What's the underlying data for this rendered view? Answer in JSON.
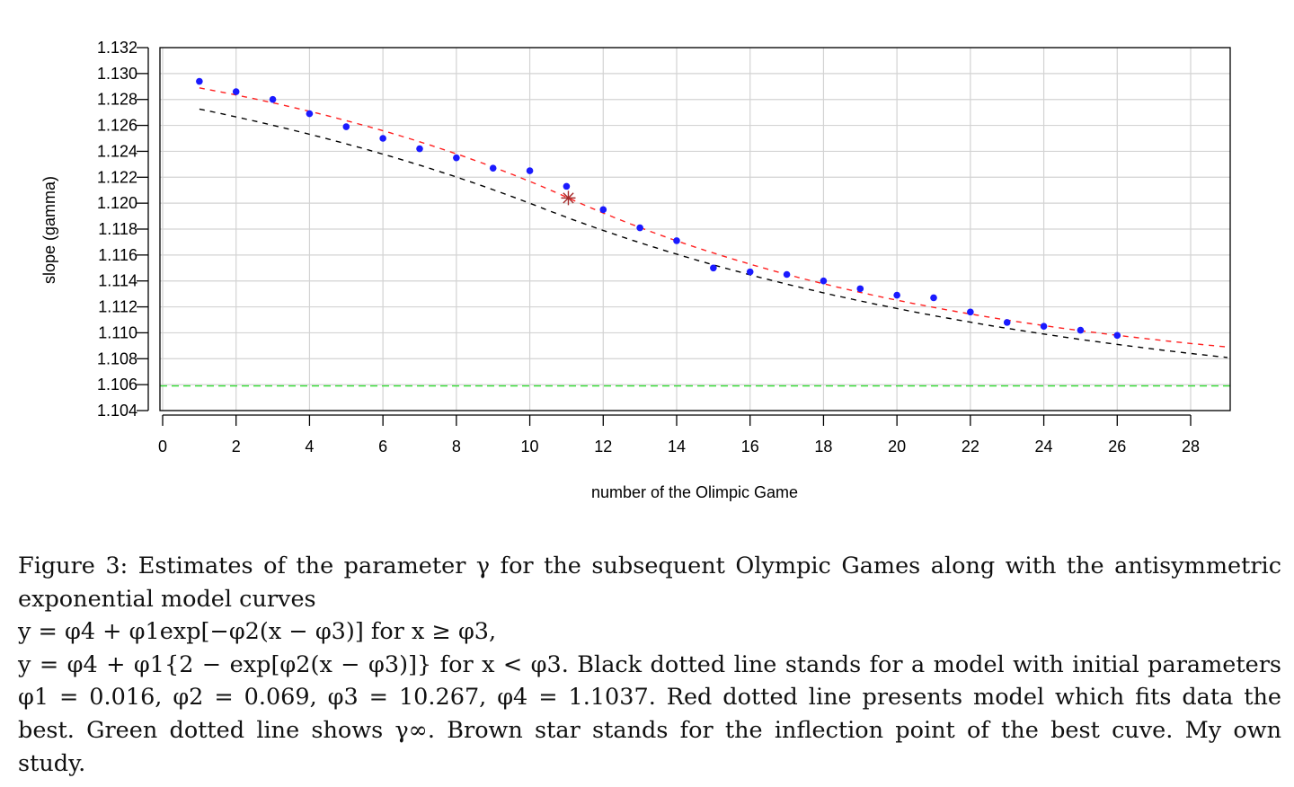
{
  "chart_data": {
    "type": "scatter",
    "title": "",
    "xlabel": "number of the Olimpic Game",
    "ylabel": "slope (gamma)",
    "xlim": [
      0,
      29
    ],
    "ylim": [
      1.104,
      1.132
    ],
    "x_ticks": [
      0,
      2,
      4,
      6,
      8,
      10,
      12,
      14,
      16,
      18,
      20,
      22,
      24,
      26,
      28
    ],
    "x_tick_labels": [
      "0",
      "2",
      "4",
      "6",
      "8",
      "10",
      "12",
      "14",
      "16",
      "18",
      "20",
      "22",
      "24",
      "26",
      "28"
    ],
    "y_ticks": [
      1.104,
      1.106,
      1.108,
      1.11,
      1.112,
      1.114,
      1.116,
      1.118,
      1.12,
      1.122,
      1.124,
      1.126,
      1.128,
      1.13,
      1.132
    ],
    "y_tick_labels": [
      "1.104",
      "1.106",
      "1.108",
      "1.110",
      "1.112",
      "1.114",
      "1.116",
      "1.118",
      "1.120",
      "1.122",
      "1.124",
      "1.126",
      "1.128",
      "1.130",
      "1.132"
    ],
    "grid": true,
    "series": [
      {
        "name": "gamma estimates",
        "kind": "points",
        "color": "#1a1aff",
        "x": [
          1,
          2,
          3,
          4,
          5,
          6,
          7,
          8,
          9,
          10,
          11,
          12,
          13,
          14,
          15,
          16,
          17,
          18,
          19,
          20,
          21,
          22,
          23,
          24,
          25,
          26
        ],
        "y": [
          1.1294,
          1.1286,
          1.128,
          1.1269,
          1.1259,
          1.125,
          1.1242,
          1.1235,
          1.1227,
          1.1225,
          1.1213,
          1.1195,
          1.1181,
          1.1171,
          1.115,
          1.1147,
          1.1145,
          1.114,
          1.1134,
          1.1129,
          1.1127,
          1.1116,
          1.1108,
          1.1105,
          1.1102,
          1.1098
        ]
      },
      {
        "name": "initial model",
        "kind": "antisymmetric-exponential",
        "color": "#000000",
        "dash": "dashed",
        "x_range": [
          1,
          29
        ],
        "params": {
          "phi1": 0.016,
          "phi2": 0.069,
          "phi3": 10.267,
          "phi4": 1.1037
        }
      },
      {
        "name": "best fit model",
        "kind": "antisymmetric-exponential",
        "color": "#ff2020",
        "dash": "dashed",
        "x_range": [
          1,
          29
        ],
        "params": {
          "phi1": 0.0145,
          "phi2": 0.0877,
          "phi3": 11.05,
          "phi4": 1.1059
        }
      },
      {
        "name": "gamma infinity",
        "kind": "hline",
        "color": "#33dd33",
        "dash": "dashed",
        "y": 1.1059
      },
      {
        "name": "inflection point",
        "kind": "star",
        "color": "#a52a2a",
        "x": 11.05,
        "y": 1.1204
      }
    ]
  },
  "caption": {
    "line1": "Figure 3: Estimates of the parameter γ for the subsequent Olympic Games along with the antisymmetric",
    "line2": "exponential model curves",
    "line3": "y = φ4 + φ1exp[−φ2(x − φ3)] for x ≥ φ3,",
    "line4": "y = φ4 + φ1{2 − exp[φ2(x − φ3)]} for x < φ3. Black dotted line stands for a model with initial parameters",
    "line5": "φ1 = 0.016, φ2 = 0.069, φ3 = 10.267, φ4 = 1.1037. Red dotted line presents model which fits data the",
    "line6": "best. Green dotted line shows γ∞. Brown star stands for the inflection point of the best cuve. My own",
    "line7": "study."
  }
}
